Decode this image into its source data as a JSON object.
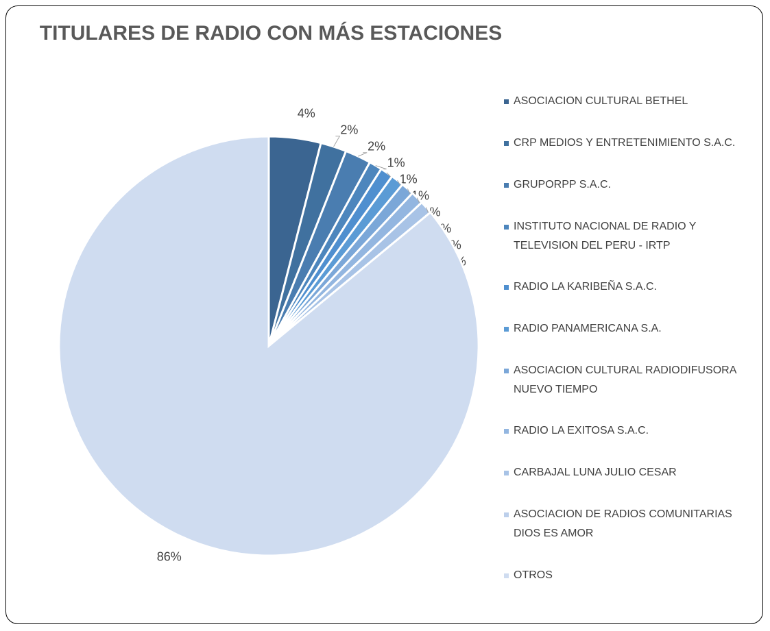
{
  "chart_data": {
    "type": "pie",
    "title": "TITULARES DE RADIO CON MÁS ESTACIONES",
    "categories": [
      "ASOCIACION CULTURAL BETHEL",
      "CRP MEDIOS Y ENTRETENIMIENTO S.A.C.",
      "GRUPORPP S.A.C.",
      "INSTITUTO NACIONAL DE RADIO Y TELEVISION DEL PERU - IRTP",
      "RADIO LA KARIBEÑA S.A.C.",
      "RADIO PANAMERICANA S.A.",
      "ASOCIACION CULTURAL RADIODIFUSORA NUEVO TIEMPO",
      "RADIO LA EXITOSA S.A.C.",
      "CARBAJAL LUNA JULIO CESAR",
      "ASOCIACION DE RADIOS COMUNITARIAS DIOS ES AMOR",
      "OTROS"
    ],
    "values": [
      4,
      2,
      2,
      1,
      1,
      1,
      1,
      1,
      1,
      0,
      86
    ],
    "value_labels": [
      "4%",
      "2%",
      "2%",
      "1%",
      "1%",
      "1%",
      "1%",
      "1%",
      "1%",
      "0%",
      "86%"
    ],
    "colors": [
      "#3b6591",
      "#40719f",
      "#4a7db0",
      "#4d86bd",
      "#4f8fcf",
      "#5b9bd5",
      "#7ba7d8",
      "#93b6e0",
      "#a8c3e6",
      "#bccfeb",
      "#cfdcf0"
    ],
    "legend": "right"
  }
}
